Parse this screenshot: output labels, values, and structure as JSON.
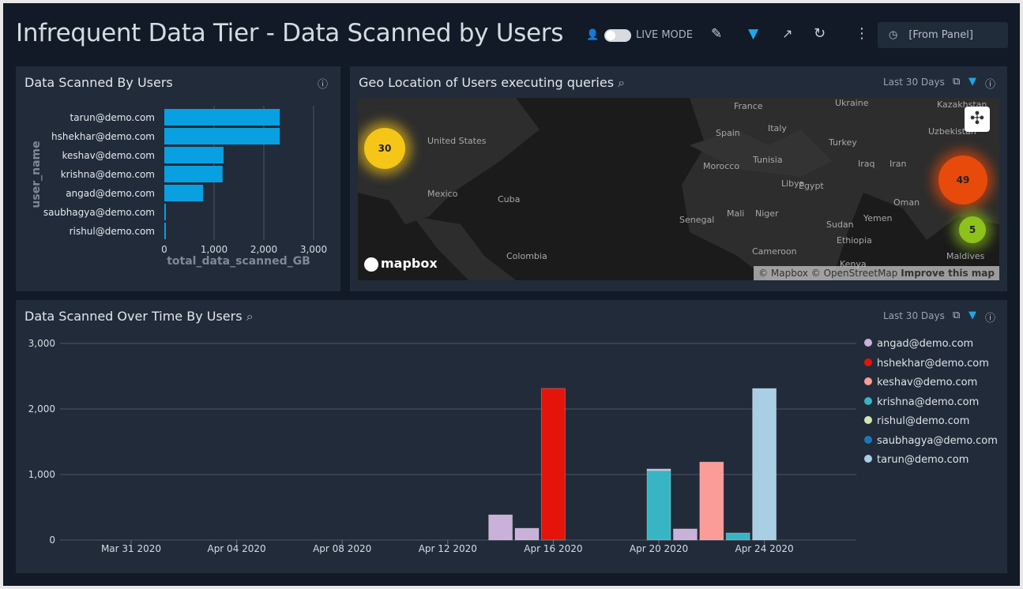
{
  "header": {
    "title": "Infrequent Data Tier - Data Scanned by Users",
    "live_mode": "LIVE MODE",
    "time_range": "[From Panel]",
    "icons": [
      "user-icon",
      "edit-icon",
      "filter-icon",
      "share-icon",
      "refresh-icon",
      "more-icon",
      "clock-icon"
    ]
  },
  "panel_users": {
    "title": "Data Scanned By Users",
    "info": "info-icon"
  },
  "panel_geo": {
    "title": "Geo Location of Users executing queries",
    "range": "Last 30 Days",
    "labels": [
      "France",
      "Ukraine",
      "Kazakhstan",
      "Italy",
      "Uzbekistan",
      "United States",
      "Spain",
      "Turkey",
      "Iraq",
      "Iran",
      "Morocco",
      "Tunisia",
      "Libya",
      "Egypt",
      "Mexico",
      "Cuba",
      "Oman",
      "Mali",
      "Niger",
      "Senegal",
      "Yemen",
      "Sudan",
      "Ethiopia",
      "Colombia",
      "Cameroon",
      "Kenya",
      "Maldives"
    ],
    "clusters": [
      {
        "count": "30",
        "color": "#f5c518"
      },
      {
        "count": "49",
        "color": "#e84a0c"
      },
      {
        "count": "5",
        "color": "#8cc21a"
      }
    ],
    "logo": "mapbox",
    "attribution": "© Mapbox © OpenStreetMap",
    "improve": "Improve this map"
  },
  "panel_time": {
    "title": "Data Scanned Over Time By Users",
    "range": "Last 30 Days"
  },
  "chart_data": [
    {
      "type": "bar",
      "orientation": "horizontal",
      "xlabel": "total_data_scanned_GB",
      "ylabel": "user_name",
      "categories": [
        "tarun@demo.com",
        "hshekhar@demo.com",
        "keshav@demo.com",
        "krishna@demo.com",
        "angad@demo.com",
        "saubhagya@demo.com",
        "rishul@demo.com"
      ],
      "values": [
        2320,
        2320,
        1190,
        1170,
        780,
        15,
        10
      ],
      "xlim": [
        0,
        3000
      ],
      "xticks": [
        "0",
        "1,000",
        "2,000",
        "3,000"
      ],
      "color": "#08a0e0",
      "grid": true
    },
    {
      "type": "bar",
      "stacked": true,
      "xlim": [
        "2020-03-28",
        "2020-04-27"
      ],
      "ylim": [
        0,
        3000
      ],
      "xticks": [
        {
          "date": "2020-03-31",
          "label": "Mar 31 2020"
        },
        {
          "date": "2020-04-04",
          "label": "Apr 04 2020"
        },
        {
          "date": "2020-04-08",
          "label": "Apr 08 2020"
        },
        {
          "date": "2020-04-12",
          "label": "Apr 12 2020"
        },
        {
          "date": "2020-04-16",
          "label": "Apr 16 2020"
        },
        {
          "date": "2020-04-20",
          "label": "Apr 20 2020"
        },
        {
          "date": "2020-04-24",
          "label": "Apr 24 2020"
        }
      ],
      "yticks": [
        {
          "v": 0,
          "label": "0"
        },
        {
          "v": 1000,
          "label": "1,000"
        },
        {
          "v": 2000,
          "label": "2,000"
        },
        {
          "v": 3000,
          "label": "3,000"
        }
      ],
      "legend": "right",
      "grid": true,
      "series": [
        {
          "name": "angad@demo.com",
          "color": "#c9b1da",
          "points": [
            [
              "2020-04-14",
              385
            ],
            [
              "2020-04-15",
              180
            ],
            [
              "2020-04-20",
              25
            ],
            [
              "2020-04-21",
              170
            ]
          ]
        },
        {
          "name": "hshekhar@demo.com",
          "color": "#e4140b",
          "points": [
            [
              "2020-04-16",
              2313
            ]
          ]
        },
        {
          "name": "keshav@demo.com",
          "color": "#fc9c98",
          "points": [
            [
              "2020-04-22",
              1190
            ]
          ]
        },
        {
          "name": "krishna@demo.com",
          "color": "#37b5c5",
          "points": [
            [
              "2020-04-20",
              1060
            ],
            [
              "2020-04-23",
              108
            ]
          ]
        },
        {
          "name": "rishul@demo.com",
          "color": "#cfe8b0",
          "points": []
        },
        {
          "name": "saubhagya@demo.com",
          "color": "#1f77b4",
          "points": []
        },
        {
          "name": "tarun@demo.com",
          "color": "#a8cfe4",
          "points": [
            [
              "2020-04-24",
              2313
            ]
          ]
        }
      ]
    }
  ]
}
